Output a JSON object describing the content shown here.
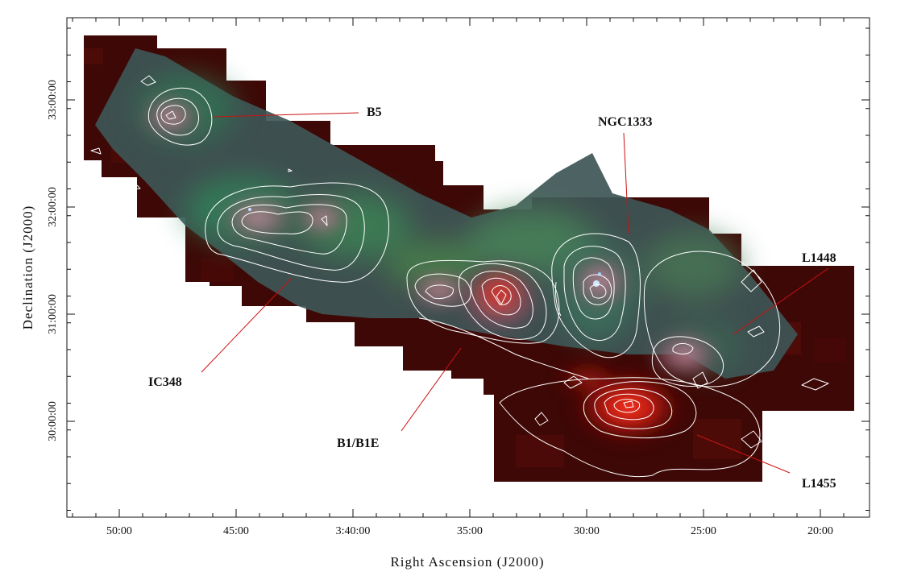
{
  "axes": {
    "xlabel": "Right Ascension (J2000)",
    "ylabel": "Declination (J2000)",
    "x_ticks": [
      "50:00",
      "45:00",
      "3:40:00",
      "35:00",
      "30:00",
      "25:00",
      "20:00"
    ],
    "y_ticks": [
      "33:00:00",
      "32:00:00",
      "31:00:00",
      "30:00:00"
    ]
  },
  "regions": [
    {
      "id": "b5",
      "label": "B5"
    },
    {
      "id": "ngc1333",
      "label": "NGC1333"
    },
    {
      "id": "l1448",
      "label": "L1448"
    },
    {
      "id": "ic348",
      "label": "IC348"
    },
    {
      "id": "b1",
      "label": "B1/B1E"
    },
    {
      "id": "l1455",
      "label": "L1455"
    }
  ],
  "colors": {
    "contour": "#ffffff",
    "leader_line": "#cc1111",
    "background_red": "#4a0a08",
    "nebula_green": "#2f7a55",
    "nebula_teal": "#1c4a4a",
    "core_red": "#ff2a1a",
    "axis": "#111111"
  }
}
